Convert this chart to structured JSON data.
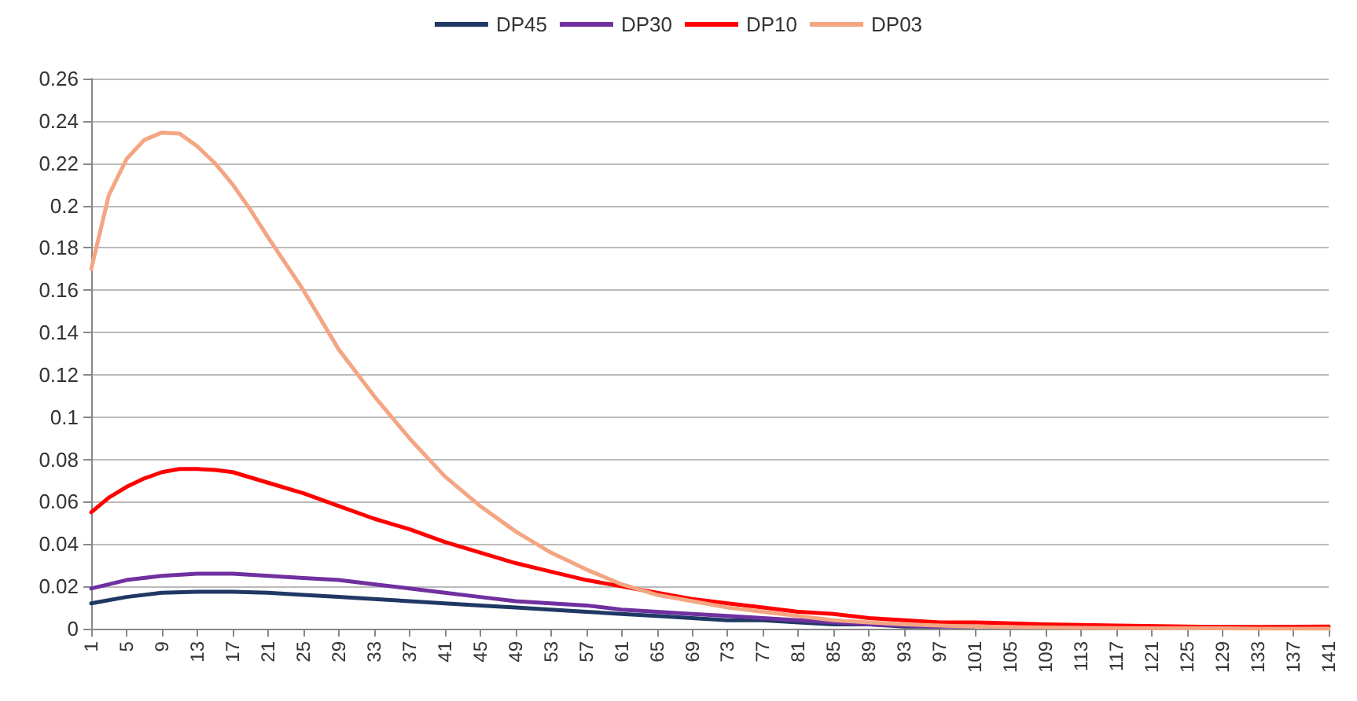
{
  "chart_data": {
    "type": "line",
    "legend": "top",
    "grid": "y",
    "marker": "none",
    "line_style": "solid",
    "xlim": [
      1,
      141
    ],
    "xticks": [
      1,
      5,
      9,
      13,
      17,
      21,
      25,
      29,
      33,
      37,
      41,
      45,
      49,
      53,
      57,
      61,
      65,
      69,
      73,
      77,
      81,
      85,
      89,
      93,
      97,
      101,
      105,
      109,
      113,
      117,
      121,
      125,
      129,
      133,
      137,
      141
    ],
    "ylim": [
      0,
      0.26
    ],
    "yticks": [
      0,
      0.02,
      0.04,
      0.06,
      0.08,
      0.1,
      0.12,
      0.14,
      0.16,
      0.18,
      0.2,
      0.22,
      0.24,
      0.26
    ],
    "series": [
      {
        "name": "DP45",
        "color": "#1f3864",
        "x": [
          1,
          5,
          9,
          13,
          17,
          21,
          25,
          29,
          33,
          37,
          41,
          45,
          49,
          53,
          57,
          61,
          65,
          69,
          73,
          77,
          81,
          85,
          89,
          93,
          97
        ],
        "values": [
          0.012,
          0.015,
          0.017,
          0.0175,
          0.0175,
          0.017,
          0.016,
          0.015,
          0.014,
          0.013,
          0.012,
          0.011,
          0.01,
          0.009,
          0.008,
          0.007,
          0.006,
          0.005,
          0.004,
          0.004,
          0.003,
          0.002,
          0.002,
          0.001,
          0.001
        ]
      },
      {
        "name": "DP30",
        "color": "#7030a0",
        "x": [
          1,
          5,
          9,
          13,
          17,
          21,
          25,
          29,
          33,
          37,
          41,
          45,
          49,
          53,
          57,
          61,
          65,
          69,
          73,
          77,
          81,
          85,
          89,
          93,
          97,
          101
        ],
        "values": [
          0.019,
          0.023,
          0.025,
          0.026,
          0.026,
          0.025,
          0.024,
          0.023,
          0.021,
          0.019,
          0.017,
          0.015,
          0.013,
          0.012,
          0.011,
          0.009,
          0.008,
          0.007,
          0.006,
          0.005,
          0.004,
          0.003,
          0.002,
          0.0015,
          0.001,
          0.001
        ]
      },
      {
        "name": "DP10",
        "color": "#ff0000",
        "x": [
          1,
          3,
          5,
          7,
          9,
          11,
          13,
          15,
          17,
          21,
          25,
          29,
          33,
          37,
          41,
          45,
          49,
          53,
          57,
          61,
          65,
          69,
          73,
          77,
          81,
          85,
          89,
          93,
          97,
          101,
          109,
          117,
          125,
          133,
          141
        ],
        "values": [
          0.055,
          0.062,
          0.067,
          0.071,
          0.074,
          0.0755,
          0.0755,
          0.075,
          0.074,
          0.069,
          0.064,
          0.058,
          0.052,
          0.047,
          0.041,
          0.036,
          0.031,
          0.027,
          0.023,
          0.02,
          0.017,
          0.014,
          0.012,
          0.01,
          0.008,
          0.007,
          0.005,
          0.004,
          0.003,
          0.003,
          0.002,
          0.0015,
          0.001,
          0.0008,
          0.001
        ]
      },
      {
        "name": "DP03",
        "color": "#f4a582",
        "x": [
          1,
          3,
          5,
          7,
          9,
          11,
          13,
          15,
          17,
          19,
          21,
          25,
          29,
          33,
          37,
          41,
          45,
          49,
          53,
          57,
          61,
          65,
          69,
          73,
          77,
          81,
          85,
          89,
          93,
          97,
          101,
          109,
          117,
          129,
          133,
          141
        ],
        "values": [
          0.17,
          0.205,
          0.222,
          0.231,
          0.2345,
          0.234,
          0.228,
          0.22,
          0.21,
          0.198,
          0.185,
          0.16,
          0.132,
          0.11,
          0.09,
          0.072,
          0.058,
          0.046,
          0.036,
          0.028,
          0.021,
          0.016,
          0.013,
          0.01,
          0.008,
          0.006,
          0.004,
          0.003,
          0.002,
          0.0015,
          0.001,
          0.0006,
          0.0003,
          0.0002,
          0,
          0
        ]
      }
    ]
  }
}
